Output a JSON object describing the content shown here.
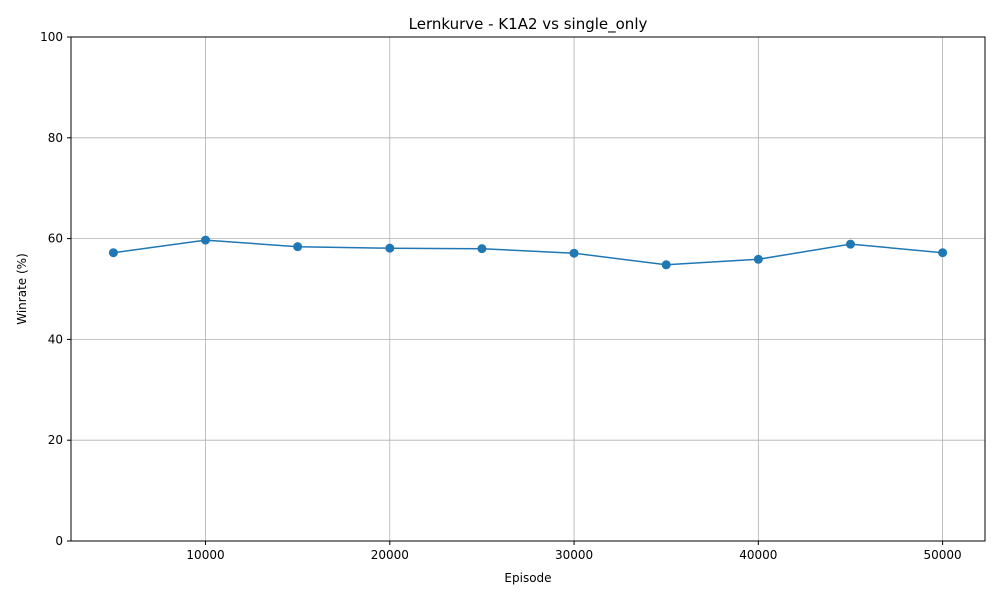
{
  "chart_data": {
    "type": "line",
    "title": "Lernkurve - K1A2 vs single_only",
    "xlabel": "Episode",
    "ylabel": "Winrate (%)",
    "xlim": [
      2700,
      52300
    ],
    "ylim": [
      0,
      100
    ],
    "x_ticks": [
      10000,
      20000,
      30000,
      40000,
      50000
    ],
    "y_ticks": [
      0,
      20,
      40,
      60,
      80,
      100
    ],
    "grid": true,
    "series": [
      {
        "color": "#1f77b4",
        "marker": "circle",
        "x": [
          5000,
          10000,
          15000,
          20000,
          25000,
          30000,
          35000,
          40000,
          45000,
          50000
        ],
        "y": [
          57.2,
          59.7,
          58.4,
          58.1,
          58.0,
          57.1,
          54.8,
          55.9,
          58.9,
          57.2
        ]
      }
    ]
  }
}
